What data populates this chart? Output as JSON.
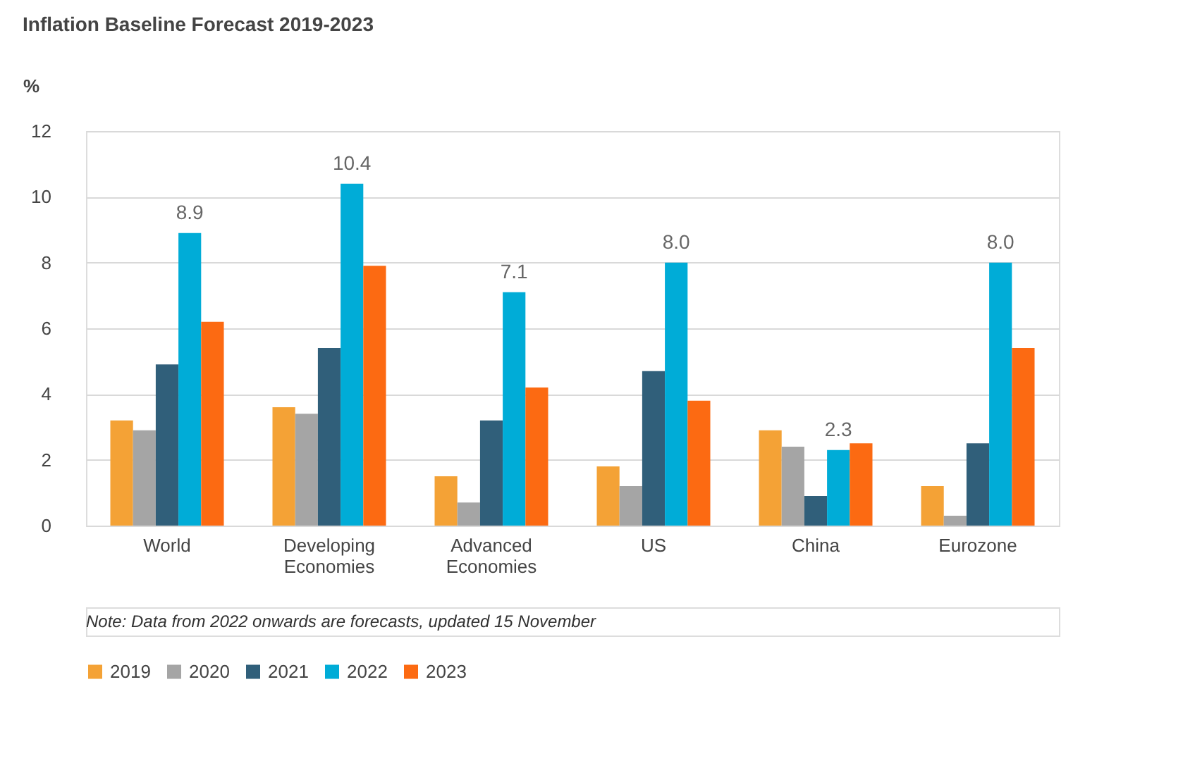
{
  "chart_data": {
    "type": "bar",
    "title": "Inflation Baseline Forecast 2019-2023",
    "ylabel": "%",
    "categories": [
      "World",
      "Developing Economies",
      "Advanced Economies",
      "US",
      "China",
      "Eurozone"
    ],
    "series": [
      {
        "name": "2019",
        "color": "#f4a236",
        "values": [
          3.2,
          3.6,
          1.5,
          1.8,
          2.9,
          1.2
        ]
      },
      {
        "name": "2020",
        "color": "#a5a5a5",
        "values": [
          2.9,
          3.4,
          0.7,
          1.2,
          2.4,
          0.3
        ]
      },
      {
        "name": "2021",
        "color": "#305f7a",
        "values": [
          4.9,
          5.4,
          3.2,
          4.7,
          0.9,
          2.5
        ]
      },
      {
        "name": "2022",
        "color": "#00acd7",
        "values": [
          8.9,
          10.4,
          7.1,
          8.0,
          2.3,
          8.0
        ],
        "value_labels": [
          "8.9",
          "10.4",
          "7.1",
          "8.0",
          "2.3",
          "8.0"
        ]
      },
      {
        "name": "2023",
        "color": "#fc6a12",
        "values": [
          6.2,
          7.9,
          4.2,
          3.8,
          2.5,
          5.4
        ]
      }
    ],
    "ylim": [
      0,
      12
    ],
    "yticks": [
      0,
      2,
      4,
      6,
      8,
      10,
      12
    ],
    "grid": "y",
    "legend": "bottom",
    "annotations": [
      "Note: Data from 2022 onwards are forecasts, updated 15 November"
    ]
  }
}
